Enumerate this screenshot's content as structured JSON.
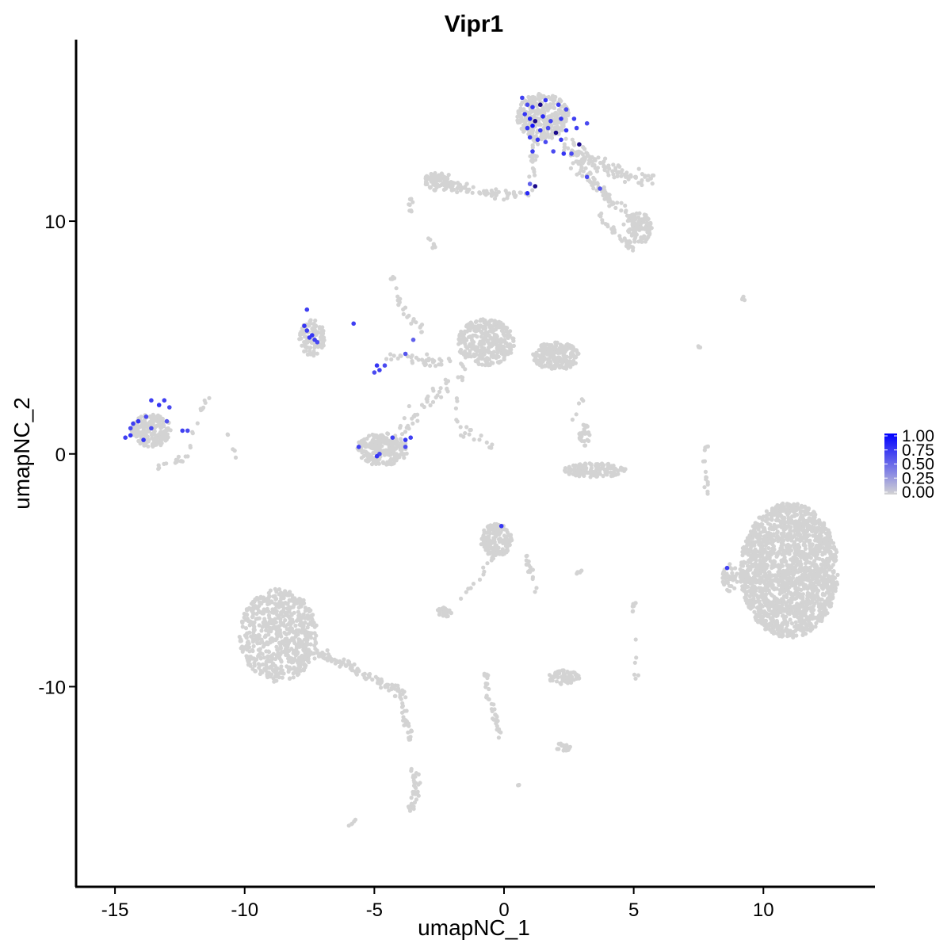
{
  "chart_data": {
    "type": "scatter",
    "title": "Vipr1",
    "xlabel": "umapNC_1",
    "ylabel": "umapNC_2",
    "xlim": [
      -16.5,
      14.3
    ],
    "ylim": [
      -18.6,
      17.8
    ],
    "x_ticks": [
      -15,
      -10,
      -5,
      0,
      5,
      10
    ],
    "x_tick_labels": [
      "-15",
      "-10",
      "-5",
      "0",
      "5",
      "10"
    ],
    "y_ticks": [
      -10,
      0,
      10
    ],
    "y_tick_labels": [
      "-10",
      "0",
      "10"
    ],
    "grid": false,
    "legend": {
      "placement": "right",
      "type": "colorbar",
      "title": "",
      "labels": [
        "1.00",
        "0.75",
        "0.50",
        "0.25",
        "0.00"
      ],
      "values": [
        1.0,
        0.75,
        0.5,
        0.25,
        0.0
      ],
      "color_low": "#d3d3d3",
      "color_high": "#0000ff"
    },
    "background_clusters": [
      {
        "cx": 11.0,
        "cy": -5.0,
        "rx": 1.9,
        "ry": 2.9,
        "n": 1800
      },
      {
        "cx": -8.7,
        "cy": -7.8,
        "rx": 1.5,
        "ry": 2.0,
        "n": 650
      },
      {
        "cx": 1.5,
        "cy": 14.5,
        "rx": 1.0,
        "ry": 1.0,
        "n": 300
      },
      {
        "cx": -0.7,
        "cy": 4.8,
        "rx": 1.1,
        "ry": 1.0,
        "n": 320
      },
      {
        "cx": 2.0,
        "cy": 4.2,
        "rx": 0.9,
        "ry": 0.6,
        "n": 200
      },
      {
        "cx": -4.7,
        "cy": 0.2,
        "rx": 1.0,
        "ry": 0.7,
        "n": 240
      },
      {
        "cx": -13.6,
        "cy": 1.0,
        "rx": 0.8,
        "ry": 0.7,
        "n": 200
      },
      {
        "cx": -0.3,
        "cy": -3.7,
        "rx": 0.6,
        "ry": 0.7,
        "n": 160
      },
      {
        "cx": -7.4,
        "cy": 5.0,
        "rx": 0.5,
        "ry": 0.8,
        "n": 100
      },
      {
        "cx": 3.5,
        "cy": -0.7,
        "rx": 1.2,
        "ry": 0.3,
        "n": 140
      },
      {
        "cx": 2.3,
        "cy": -9.6,
        "rx": 0.6,
        "ry": 0.3,
        "n": 70
      },
      {
        "cx": 5.2,
        "cy": 9.7,
        "rx": 0.5,
        "ry": 0.7,
        "n": 90
      },
      {
        "cx": -2.5,
        "cy": 11.7,
        "rx": 0.6,
        "ry": 0.4,
        "n": 80
      },
      {
        "cx": 8.7,
        "cy": -5.3,
        "rx": 0.3,
        "ry": 0.6,
        "n": 40
      },
      {
        "cx": 3.1,
        "cy": 0.8,
        "rx": 0.2,
        "ry": 0.5,
        "n": 30
      },
      {
        "cx": -2.3,
        "cy": -6.8,
        "rx": 0.3,
        "ry": 0.2,
        "n": 25
      },
      {
        "cx": 2.3,
        "cy": -12.6,
        "rx": 0.3,
        "ry": 0.2,
        "n": 18
      },
      {
        "cx": 9.3,
        "cy": 6.7,
        "rx": 0.15,
        "ry": 0.1,
        "n": 4
      },
      {
        "cx": -3.6,
        "cy": 10.7,
        "rx": 0.1,
        "ry": 0.3,
        "n": 8
      },
      {
        "cx": 5.0,
        "cy": -6.5,
        "rx": 0.1,
        "ry": 0.3,
        "n": 8
      }
    ],
    "background_paths": [
      {
        "points": [
          [
            -2.5,
            11.6
          ],
          [
            -1.0,
            11.3
          ],
          [
            0.2,
            11.1
          ],
          [
            1.0,
            11.2
          ]
        ],
        "n": 70,
        "spread": 0.2
      },
      {
        "points": [
          [
            1.0,
            11.2
          ],
          [
            1.1,
            12.5
          ],
          [
            1.3,
            13.6
          ]
        ],
        "n": 25,
        "spread": 0.12
      },
      {
        "points": [
          [
            2.3,
            13.3
          ],
          [
            3.5,
            12.5
          ],
          [
            4.6,
            12.0
          ],
          [
            5.7,
            11.8
          ]
        ],
        "n": 110,
        "spread": 0.3
      },
      {
        "points": [
          [
            2.8,
            12.5
          ],
          [
            4.0,
            11.0
          ],
          [
            5.3,
            9.8
          ]
        ],
        "n": 80,
        "spread": 0.25
      },
      {
        "points": [
          [
            3.6,
            10.3
          ],
          [
            4.6,
            9.2
          ],
          [
            5.0,
            8.8
          ]
        ],
        "n": 30,
        "spread": 0.15
      },
      {
        "points": [
          [
            -8.0,
            -8.7
          ],
          [
            -7.0,
            -8.6
          ],
          [
            -6.0,
            -9.1
          ],
          [
            -5.0,
            -9.7
          ],
          [
            -3.8,
            -10.3
          ]
        ],
        "n": 120,
        "spread": 0.22
      },
      {
        "points": [
          [
            -4.0,
            -10.3
          ],
          [
            -3.8,
            -11.5
          ],
          [
            -3.6,
            -12.5
          ]
        ],
        "n": 30,
        "spread": 0.12
      },
      {
        "points": [
          [
            -3.5,
            -13.6
          ],
          [
            -3.4,
            -14.5
          ],
          [
            -3.6,
            -15.4
          ]
        ],
        "n": 40,
        "spread": 0.15
      },
      {
        "points": [
          [
            -0.7,
            -9.4
          ],
          [
            -0.6,
            -10.5
          ],
          [
            -0.3,
            -11.5
          ],
          [
            -0.1,
            -12.2
          ]
        ],
        "n": 40,
        "spread": 0.12
      },
      {
        "points": [
          [
            -1.6,
            3.3
          ],
          [
            -2.6,
            2.5
          ],
          [
            -3.5,
            1.7
          ],
          [
            -4.0,
            0.9
          ]
        ],
        "n": 40,
        "spread": 0.3
      },
      {
        "points": [
          [
            -1.6,
            3.8
          ],
          [
            -3.2,
            4.1
          ],
          [
            -4.5,
            4.0
          ]
        ],
        "n": 40,
        "spread": 0.3
      },
      {
        "points": [
          [
            -2.2,
            3.1
          ],
          [
            -1.8,
            2.0
          ],
          [
            -1.6,
            1.0
          ],
          [
            -1.3,
            0.8
          ]
        ],
        "n": 15,
        "spread": 0.2
      },
      {
        "points": [
          [
            -4.3,
            7.6
          ],
          [
            -4.0,
            6.4
          ],
          [
            -3.6,
            5.8
          ],
          [
            -3.2,
            5.3
          ]
        ],
        "n": 25,
        "spread": 0.12
      },
      {
        "points": [
          [
            -0.3,
            -4.3
          ],
          [
            -1.0,
            -5.4
          ],
          [
            -1.7,
            -6.3
          ]
        ],
        "n": 15,
        "spread": 0.12
      },
      {
        "points": [
          [
            0.8,
            -4.3
          ],
          [
            1.1,
            -5.3
          ],
          [
            1.3,
            -5.9
          ]
        ],
        "n": 18,
        "spread": 0.1
      },
      {
        "points": [
          [
            -11.5,
            2.8
          ],
          [
            -11.5,
            2.3
          ],
          [
            -11.9,
            1.2
          ],
          [
            -12.2,
            0.1
          ]
        ],
        "n": 12,
        "spread": 0.12
      },
      {
        "points": [
          [
            7.9,
            0.6
          ],
          [
            7.7,
            -0.3
          ],
          [
            7.9,
            -1.8
          ]
        ],
        "n": 15,
        "spread": 0.1
      },
      {
        "points": [
          [
            7.5,
            4.8
          ],
          [
            7.6,
            4.4
          ]
        ],
        "n": 3,
        "spread": 0.05
      },
      {
        "points": [
          [
            -2.9,
            9.3
          ],
          [
            -2.7,
            8.8
          ]
        ],
        "n": 8,
        "spread": 0.08
      },
      {
        "points": [
          [
            4.9,
            -7.0
          ],
          [
            5.1,
            -9.9
          ]
        ],
        "n": 6,
        "spread": 0.08
      },
      {
        "points": [
          [
            0.5,
            -14.2
          ],
          [
            0.7,
            -14.3
          ]
        ],
        "n": 3,
        "spread": 0.03
      },
      {
        "points": [
          [
            -6.0,
            -16.0
          ],
          [
            -5.7,
            -15.7
          ]
        ],
        "n": 5,
        "spread": 0.05
      },
      {
        "points": [
          [
            -10.9,
            1.5
          ],
          [
            -10.5,
            0.4
          ],
          [
            -10.3,
            -0.2
          ]
        ],
        "n": 5,
        "spread": 0.1
      },
      {
        "points": [
          [
            2.6,
            1.1
          ],
          [
            2.8,
            1.9
          ],
          [
            3.1,
            2.6
          ]
        ],
        "n": 5,
        "spread": 0.08
      },
      {
        "points": [
          [
            -13.3,
            -0.6
          ],
          [
            -12.0,
            -0.1
          ]
        ],
        "n": 15,
        "spread": 0.12
      },
      {
        "points": [
          [
            -1.4,
            1.2
          ],
          [
            -1.0,
            0.8
          ],
          [
            -0.4,
            0.2
          ]
        ],
        "n": 8,
        "spread": 0.12
      },
      {
        "points": [
          [
            3.0,
            -5.0
          ],
          [
            2.7,
            -5.2
          ]
        ],
        "n": 6,
        "spread": 0.05
      }
    ],
    "expressing_points": [
      {
        "x": 0.7,
        "y": 15.3,
        "v": 0.55
      },
      {
        "x": 0.9,
        "y": 15.0,
        "v": 0.5
      },
      {
        "x": 1.1,
        "y": 14.9,
        "v": 0.6
      },
      {
        "x": 1.4,
        "y": 15.0,
        "v": 0.95
      },
      {
        "x": 1.6,
        "y": 15.2,
        "v": 0.6
      },
      {
        "x": 2.1,
        "y": 15.0,
        "v": 0.55
      },
      {
        "x": 2.4,
        "y": 14.8,
        "v": 0.5
      },
      {
        "x": 0.8,
        "y": 14.6,
        "v": 0.6
      },
      {
        "x": 1.0,
        "y": 14.4,
        "v": 0.7
      },
      {
        "x": 1.2,
        "y": 14.3,
        "v": 0.9
      },
      {
        "x": 1.5,
        "y": 14.5,
        "v": 0.65
      },
      {
        "x": 1.8,
        "y": 14.3,
        "v": 0.55
      },
      {
        "x": 2.2,
        "y": 14.4,
        "v": 0.6
      },
      {
        "x": 2.7,
        "y": 14.4,
        "v": 0.55
      },
      {
        "x": 3.2,
        "y": 14.2,
        "v": 0.5
      },
      {
        "x": 0.9,
        "y": 14.0,
        "v": 0.6
      },
      {
        "x": 1.1,
        "y": 14.1,
        "v": 0.75
      },
      {
        "x": 1.4,
        "y": 13.9,
        "v": 0.6
      },
      {
        "x": 1.7,
        "y": 14.0,
        "v": 0.5
      },
      {
        "x": 2.0,
        "y": 13.8,
        "v": 0.95
      },
      {
        "x": 2.4,
        "y": 13.9,
        "v": 0.6
      },
      {
        "x": 2.8,
        "y": 14.0,
        "v": 0.55
      },
      {
        "x": 1.0,
        "y": 13.6,
        "v": 0.55
      },
      {
        "x": 1.3,
        "y": 13.5,
        "v": 0.6
      },
      {
        "x": 1.6,
        "y": 13.4,
        "v": 0.5
      },
      {
        "x": 2.2,
        "y": 13.5,
        "v": 0.6
      },
      {
        "x": 2.9,
        "y": 13.3,
        "v": 0.9
      },
      {
        "x": 1.1,
        "y": 13.0,
        "v": 0.55
      },
      {
        "x": 1.9,
        "y": 13.0,
        "v": 0.5
      },
      {
        "x": 2.3,
        "y": 12.9,
        "v": 0.6
      },
      {
        "x": 2.6,
        "y": 12.9,
        "v": 0.5
      },
      {
        "x": 1.2,
        "y": 11.5,
        "v": 0.95
      },
      {
        "x": 0.9,
        "y": 11.2,
        "v": 0.65
      },
      {
        "x": 3.2,
        "y": 11.9,
        "v": 0.5
      },
      {
        "x": 3.7,
        "y": 11.4,
        "v": 0.45
      },
      {
        "x": 1.0,
        "y": 11.6,
        "v": 0.4
      },
      {
        "x": -13.1,
        "y": 2.3,
        "v": 0.55
      },
      {
        "x": -13.3,
        "y": 2.1,
        "v": 0.6
      },
      {
        "x": -12.9,
        "y": 2.0,
        "v": 0.5
      },
      {
        "x": -13.6,
        "y": 2.3,
        "v": 0.55
      },
      {
        "x": -13.8,
        "y": 1.6,
        "v": 0.5
      },
      {
        "x": -14.1,
        "y": 1.4,
        "v": 0.6
      },
      {
        "x": -14.3,
        "y": 1.3,
        "v": 0.55
      },
      {
        "x": -14.4,
        "y": 1.1,
        "v": 0.5
      },
      {
        "x": -14.4,
        "y": 0.8,
        "v": 0.6
      },
      {
        "x": -14.6,
        "y": 0.7,
        "v": 0.55
      },
      {
        "x": -13.9,
        "y": 0.6,
        "v": 0.6
      },
      {
        "x": -13.6,
        "y": 1.1,
        "v": 0.5
      },
      {
        "x": -12.4,
        "y": 1.0,
        "v": 0.55
      },
      {
        "x": -12.2,
        "y": 1.0,
        "v": 0.5
      },
      {
        "x": -13.0,
        "y": 1.4,
        "v": 0.45
      },
      {
        "x": -7.6,
        "y": 6.2,
        "v": 0.55
      },
      {
        "x": -7.7,
        "y": 5.5,
        "v": 0.6
      },
      {
        "x": -7.6,
        "y": 5.3,
        "v": 0.55
      },
      {
        "x": -7.4,
        "y": 5.1,
        "v": 0.6
      },
      {
        "x": -7.3,
        "y": 4.9,
        "v": 0.55
      },
      {
        "x": -7.2,
        "y": 4.8,
        "v": 0.5
      },
      {
        "x": -7.5,
        "y": 5.0,
        "v": 0.6
      },
      {
        "x": -5.8,
        "y": 5.6,
        "v": 0.55
      },
      {
        "x": -4.9,
        "y": 3.8,
        "v": 0.6
      },
      {
        "x": -4.8,
        "y": 3.6,
        "v": 0.55
      },
      {
        "x": -5.0,
        "y": 3.5,
        "v": 0.5
      },
      {
        "x": -4.6,
        "y": 3.8,
        "v": 0.5
      },
      {
        "x": -3.8,
        "y": 4.3,
        "v": 0.45
      },
      {
        "x": -3.5,
        "y": 4.9,
        "v": 0.4
      },
      {
        "x": -5.6,
        "y": 0.3,
        "v": 0.55
      },
      {
        "x": -4.9,
        "y": -0.1,
        "v": 0.6
      },
      {
        "x": -4.8,
        "y": 0.0,
        "v": 0.5
      },
      {
        "x": -4.3,
        "y": 0.7,
        "v": 0.55
      },
      {
        "x": -3.8,
        "y": 0.6,
        "v": 0.6
      },
      {
        "x": -3.6,
        "y": 0.7,
        "v": 0.55
      },
      {
        "x": -3.8,
        "y": 0.3,
        "v": 0.5
      },
      {
        "x": -0.1,
        "y": -3.1,
        "v": 0.6
      },
      {
        "x": 8.6,
        "y": -4.9,
        "v": 0.55
      }
    ]
  }
}
